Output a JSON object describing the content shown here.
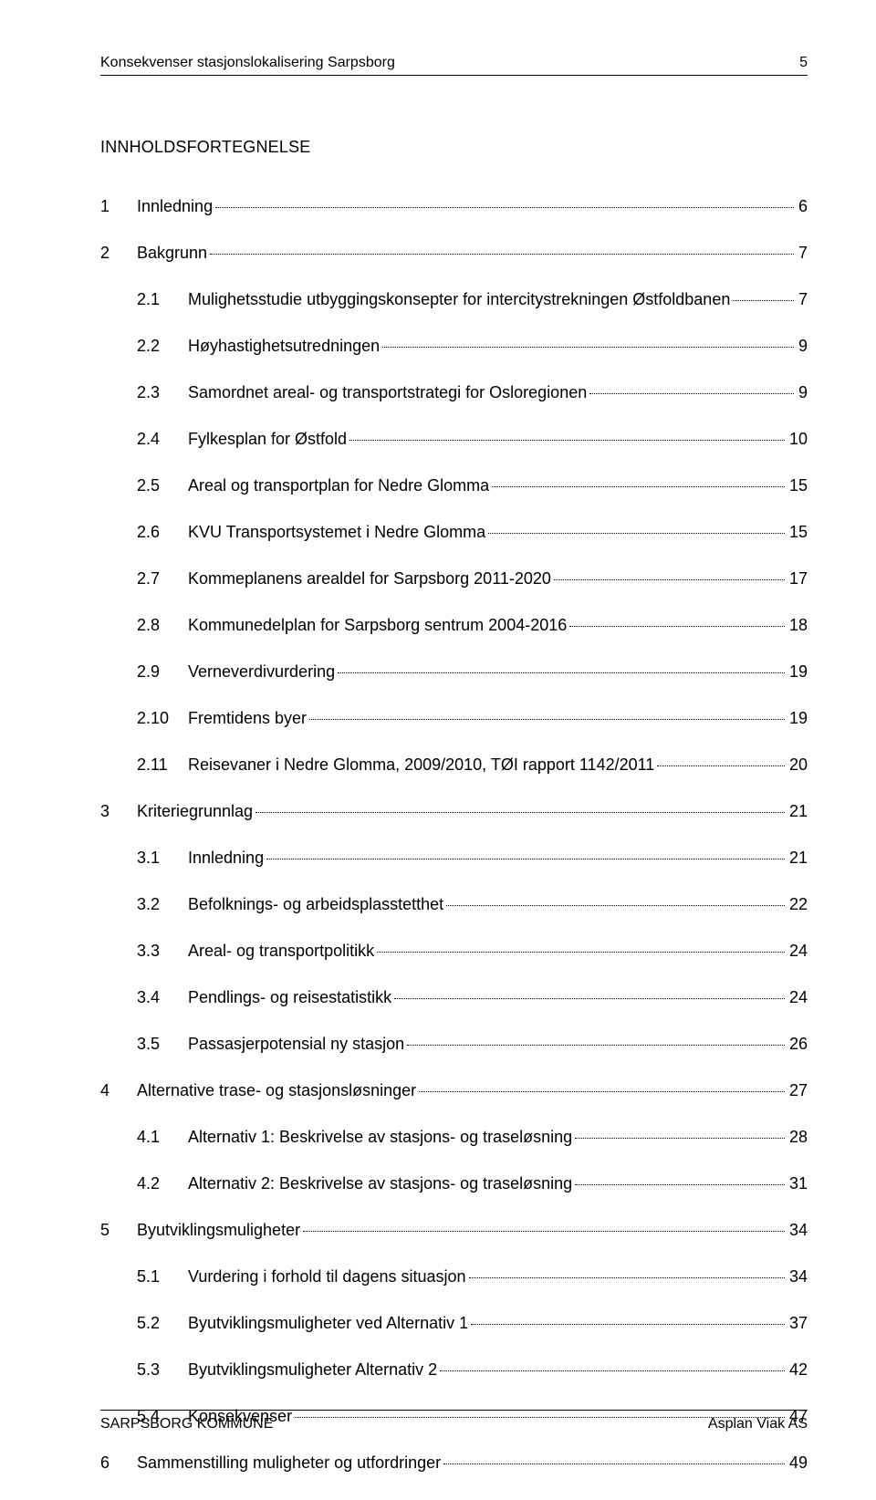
{
  "header": {
    "title": "Konsekvenser stasjonslokalisering Sarpsborg",
    "pagenum": "5"
  },
  "toc": {
    "title": "INNHOLDSFORTEGNELSE",
    "entries": [
      {
        "level": 1,
        "num": "1",
        "text": "Innledning",
        "page": "6"
      },
      {
        "level": 1,
        "num": "2",
        "text": "Bakgrunn",
        "page": "7"
      },
      {
        "level": 2,
        "num": "2.1",
        "text": "Mulighetsstudie utbyggingskonsepter for intercitystrekningen Østfoldbanen",
        "page": "7"
      },
      {
        "level": 2,
        "num": "2.2",
        "text": "Høyhastighetsutredningen",
        "page": "9"
      },
      {
        "level": 2,
        "num": "2.3",
        "text": "Samordnet areal- og transportstrategi for Osloregionen",
        "page": "9"
      },
      {
        "level": 2,
        "num": "2.4",
        "text": "Fylkesplan for Østfold",
        "page": "10"
      },
      {
        "level": 2,
        "num": "2.5",
        "text": "Areal og transportplan for Nedre Glomma",
        "page": "15"
      },
      {
        "level": 2,
        "num": "2.6",
        "text": "KVU Transportsystemet i Nedre Glomma",
        "page": "15"
      },
      {
        "level": 2,
        "num": "2.7",
        "text": "Kommeplanens arealdel for Sarpsborg 2011-2020",
        "page": "17"
      },
      {
        "level": 2,
        "num": "2.8",
        "text": "Kommunedelplan for Sarpsborg sentrum 2004-2016",
        "page": "18"
      },
      {
        "level": 2,
        "num": "2.9",
        "text": "Verneverdivurdering",
        "page": "19"
      },
      {
        "level": 2,
        "num": "2.10",
        "text": "Fremtidens byer",
        "page": "19"
      },
      {
        "level": 2,
        "num": "2.11",
        "text": "Reisevaner i Nedre Glomma, 2009/2010, TØI rapport 1142/2011",
        "page": "20"
      },
      {
        "level": 1,
        "num": "3",
        "text": "Kriteriegrunnlag",
        "page": "21"
      },
      {
        "level": 2,
        "num": "3.1",
        "text": "Innledning",
        "page": "21"
      },
      {
        "level": 2,
        "num": "3.2",
        "text": "Befolknings- og arbeidsplasstetthet",
        "page": "22"
      },
      {
        "level": 2,
        "num": "3.3",
        "text": "Areal- og transportpolitikk",
        "page": "24"
      },
      {
        "level": 2,
        "num": "3.4",
        "text": "Pendlings- og reisestatistikk",
        "page": "24"
      },
      {
        "level": 2,
        "num": "3.5",
        "text": "Passasjerpotensial ny stasjon",
        "page": "26"
      },
      {
        "level": 1,
        "num": "4",
        "text": "Alternative trase- og stasjonsløsninger",
        "page": "27"
      },
      {
        "level": 2,
        "num": "4.1",
        "text": "Alternativ 1: Beskrivelse av stasjons- og traseløsning",
        "page": "28"
      },
      {
        "level": 2,
        "num": "4.2",
        "text": "Alternativ 2: Beskrivelse av stasjons- og traseløsning",
        "page": "31"
      },
      {
        "level": 1,
        "num": "5",
        "text": "Byutviklingsmuligheter",
        "page": "34"
      },
      {
        "level": 2,
        "num": "5.1",
        "text": "Vurdering i forhold til dagens situasjon",
        "page": "34"
      },
      {
        "level": 2,
        "num": "5.2",
        "text": "Byutviklingsmuligheter ved Alternativ 1",
        "page": "37"
      },
      {
        "level": 2,
        "num": "5.3",
        "text": "Byutviklingsmuligheter Alternativ 2",
        "page": "42"
      },
      {
        "level": 2,
        "num": "5.4",
        "text": "Konsekvenser",
        "page": "47"
      },
      {
        "level": 1,
        "num": "6",
        "text": "Sammenstilling muligheter og utfordringer",
        "page": "49"
      }
    ]
  },
  "footer": {
    "left": "SARPSBORG KOMMUNE",
    "right": "Asplan Viak AS"
  }
}
